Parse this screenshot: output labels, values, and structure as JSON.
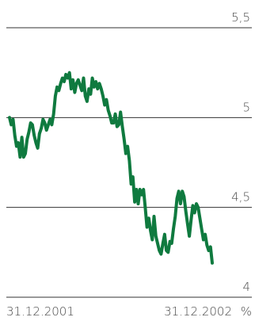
{
  "chart_data": {
    "type": "line",
    "title": "",
    "xlabel": "",
    "ylabel": "",
    "unit": "%",
    "x_range_labels": [
      "31.12.2001",
      "31.12.2002"
    ],
    "ylim": [
      4,
      5.5
    ],
    "yticks": [
      {
        "value": 5.5,
        "label": "5,5"
      },
      {
        "value": 5,
        "label": "5"
      },
      {
        "value": 4.5,
        "label": "4,5"
      },
      {
        "value": 4,
        "label": "4"
      }
    ],
    "grid": true,
    "line_color": "#0f7a3f",
    "grid_color": "#333333",
    "series": [
      {
        "values": [
          5.0,
          4.96,
          4.99,
          4.9,
          4.84,
          4.86,
          4.78,
          4.89,
          4.78,
          4.8,
          4.88,
          4.92,
          4.97,
          4.96,
          4.9,
          4.86,
          4.83,
          4.91,
          4.94,
          4.99,
          4.97,
          4.93,
          4.96,
          4.99,
          4.96,
          5.02,
          5.12,
          5.17,
          5.15,
          5.19,
          5.22,
          5.2,
          5.24,
          5.22,
          5.25,
          5.16,
          5.21,
          5.14,
          5.19,
          5.21,
          5.18,
          5.15,
          5.22,
          5.12,
          5.09,
          5.16,
          5.13,
          5.22,
          5.17,
          5.2,
          5.16,
          5.19,
          5.16,
          5.12,
          5.07,
          5.1,
          5.04,
          5.01,
          4.97,
          4.97,
          5.02,
          4.95,
          4.96,
          5.03,
          4.95,
          4.88,
          4.8,
          4.84,
          4.76,
          4.63,
          4.67,
          4.53,
          4.6,
          4.52,
          4.6,
          4.57,
          4.6,
          4.5,
          4.39,
          4.44,
          4.37,
          4.32,
          4.45,
          4.34,
          4.3,
          4.26,
          4.24,
          4.3,
          4.35,
          4.26,
          4.25,
          4.31,
          4.3,
          4.38,
          4.45,
          4.55,
          4.59,
          4.52,
          4.59,
          4.56,
          4.48,
          4.41,
          4.34,
          4.43,
          4.51,
          4.47,
          4.52,
          4.5,
          4.44,
          4.38,
          4.32,
          4.35,
          4.29,
          4.26,
          4.28,
          4.19
        ]
      }
    ]
  }
}
